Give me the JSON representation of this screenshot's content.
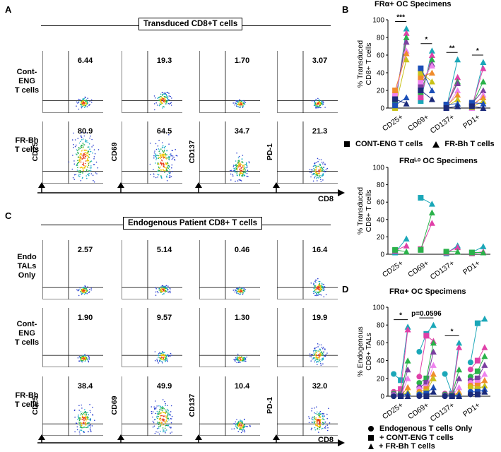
{
  "panel_A": {
    "letter": "A",
    "title": "Transduced CD8+T cells",
    "row_labels": [
      "Cont-\nENG\nT cells",
      "FR-Bh\nT cells"
    ],
    "markers": [
      "CD25",
      "CD69",
      "CD137",
      "PD-1"
    ],
    "x_marker": "CD8",
    "percentages": [
      [
        "6.44",
        "19.3",
        "1.70",
        "3.07"
      ],
      [
        "80.9",
        "64.5",
        "34.7",
        "21.3"
      ]
    ]
  },
  "panel_C": {
    "letter": "C",
    "title": "Endogenous Patient CD8+ T cells",
    "row_labels": [
      "Endo\nTALs\nOnly",
      "Cont-\nENG\nT cells",
      "FR-Bh\nT cells"
    ],
    "markers": [
      "CD25",
      "CD69",
      "CD137",
      "PD-1"
    ],
    "x_marker": "CD8",
    "percentages": [
      [
        "2.57",
        "5.14",
        "0.46",
        "16.4"
      ],
      [
        "1.90",
        "9.57",
        "1.30",
        "19.9"
      ],
      [
        "38.4",
        "49.9",
        "10.4",
        "32.0"
      ]
    ]
  },
  "legend_BC": {
    "square_label": "CONT-ENG T cells",
    "triangle_label": "FR-Bh T cells"
  },
  "legend_D": {
    "circle_label": "Endogenous T cells Only",
    "square_label": "+ CONT-ENG T cells",
    "triangle_label": "+ FR-Bh T cells"
  },
  "colors": {
    "teal": "#1aa7b8",
    "green": "#2ab24a",
    "purple": "#7b3fa0",
    "magenta": "#e040a8",
    "pink": "#ee82ee",
    "orange": "#f08c2c",
    "yellow": "#c9c21a",
    "blue": "#1b4fb8",
    "navy": "#1b2a7a",
    "black": "#000000"
  },
  "chart_data": [
    {
      "type": "scatter",
      "panel": "B",
      "title": "FRα+ OC Specimens",
      "ylabel": "% Transduced\nCD8+ T cells",
      "ylim": [
        0,
        100
      ],
      "yticks": [
        "0",
        "20",
        "40",
        "60",
        "80",
        "100"
      ],
      "categories": [
        "CD25+",
        "CD69+",
        "CD137+",
        "PD1+"
      ],
      "significance": [
        "***",
        "*",
        "**",
        "*"
      ],
      "series": [
        {
          "name": "CONT-ENG T cells",
          "marker": "square",
          "values": [
            [
              1,
              5,
              8,
              12,
              15,
              20,
              0,
              3,
              10
            ],
            [
              8,
              12,
              18,
              25,
              30,
              35,
              40,
              45,
              20
            ],
            [
              0,
              1,
              2,
              3,
              0,
              2,
              1,
              4,
              0
            ],
            [
              0,
              2,
              3,
              5,
              0,
              4,
              1,
              6,
              2
            ]
          ]
        },
        {
          "name": "FR-Bh T cells",
          "marker": "triangle",
          "values": [
            [
              90,
              85,
              80,
              75,
              65,
              62,
              55,
              12,
              5
            ],
            [
              65,
              60,
              55,
              50,
              48,
              40,
              30,
              20,
              10
            ],
            [
              55,
              35,
              30,
              28,
              20,
              15,
              10,
              5,
              2
            ],
            [
              52,
              45,
              30,
              20,
              15,
              12,
              8,
              5,
              0
            ]
          ]
        }
      ]
    },
    {
      "type": "scatter",
      "panel": "B-lower",
      "title": "FRαᴸᵒ OC Specimens",
      "ylabel": "% Transduced\nCD8+ T cells",
      "ylim": [
        0,
        100
      ],
      "yticks": [
        "0",
        "20",
        "40",
        "60",
        "80",
        "100"
      ],
      "categories": [
        "CD25+",
        "CD69+",
        "CD137+",
        "PD1+"
      ],
      "series": [
        {
          "name": "CONT-ENG T cells",
          "marker": "square",
          "values": [
            [
              2,
              4,
              5
            ],
            [
              65,
              6,
              5
            ],
            [
              1,
              2,
              3
            ],
            [
              2,
              1,
              2
            ]
          ]
        },
        {
          "name": "FR-Bh T cells",
          "marker": "triangle",
          "values": [
            [
              18,
              10,
              3
            ],
            [
              58,
              36,
              48
            ],
            [
              10,
              8,
              3
            ],
            [
              9,
              3,
              2
            ]
          ]
        }
      ]
    },
    {
      "type": "scatter",
      "panel": "D",
      "title": "FRα+ OC Specimens",
      "ylabel": "% Endogenous\nCD8+ TALs",
      "ylim": [
        0,
        100
      ],
      "yticks": [
        "0",
        "20",
        "40",
        "60",
        "80",
        "100"
      ],
      "categories": [
        "CD25+",
        "CD69+",
        "CD137+",
        "PD1+"
      ],
      "significance": [
        "*",
        "p=0.0596",
        "*",
        ""
      ],
      "series": [
        {
          "name": "Endogenous T cells Only",
          "marker": "circle",
          "values": [
            [
              25,
              5,
              3,
              2,
              1,
              0,
              0,
              0,
              0
            ],
            [
              50,
              22,
              15,
              10,
              8,
              5,
              3,
              2,
              0
            ],
            [
              25,
              3,
              2,
              1,
              0,
              0,
              0,
              0,
              0
            ],
            [
              38,
              30,
              22,
              18,
              15,
              12,
              10,
              5,
              2
            ]
          ]
        },
        {
          "name": "+ CONT-ENG T cells",
          "marker": "square",
          "values": [
            [
              18,
              8,
              2,
              1,
              0,
              0,
              0,
              0,
              0
            ],
            [
              70,
              68,
              20,
              15,
              10,
              8,
              5,
              3,
              0
            ],
            [
              3,
              2,
              1,
              0,
              0,
              0,
              0,
              0,
              0
            ],
            [
              82,
              40,
              28,
              20,
              15,
              12,
              8,
              5,
              2
            ]
          ]
        },
        {
          "name": "+ FR-Bh T cells",
          "marker": "triangle",
          "values": [
            [
              78,
              75,
              40,
              30,
              20,
              10,
              5,
              3,
              0
            ],
            [
              80,
              62,
              60,
              50,
              35,
              25,
              20,
              10,
              5
            ],
            [
              60,
              55,
              30,
              20,
              10,
              5,
              3,
              2,
              0
            ],
            [
              87,
              55,
              45,
              35,
              25,
              18,
              12,
              8,
              5
            ]
          ]
        }
      ]
    }
  ]
}
